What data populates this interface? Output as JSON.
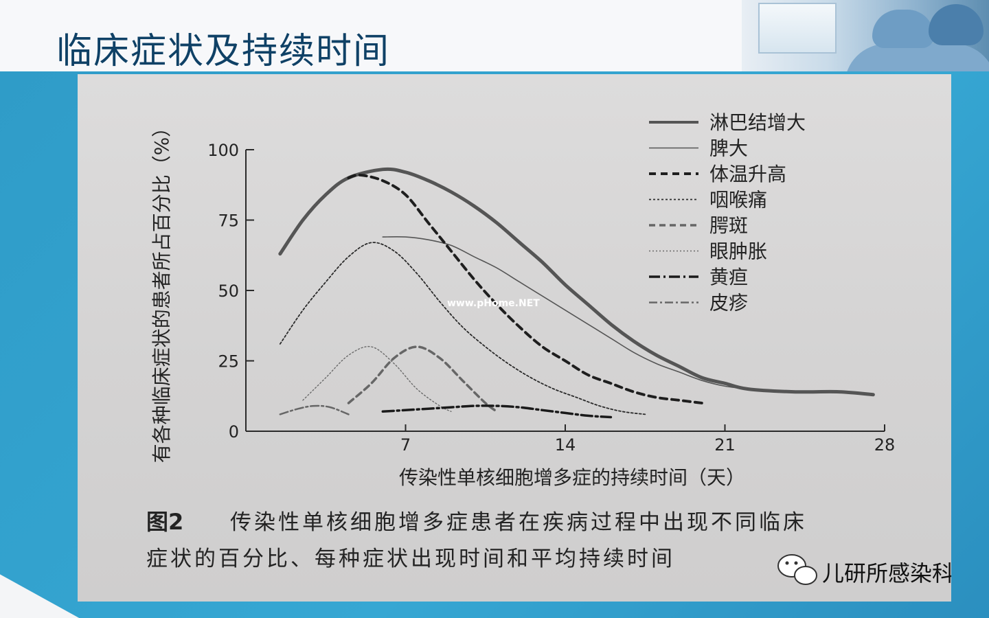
{
  "slide": {
    "title": "临床症状及持续时间"
  },
  "watermark": "www.pHome.NET",
  "caption": {
    "figure_label": "图2",
    "line1": "传染性单核细胞增多症患者在疾病过程中出现不同临床",
    "line2": "症状的百分比、每种症状出现时间和平均持续时间"
  },
  "footer": {
    "account_name": "儿研所感染科"
  },
  "chart_data": {
    "type": "line",
    "title": "",
    "xlabel": "传染性单核细胞增多症的持续时间（天）",
    "ylabel": "有各种临床症状的患者所占百分比（%）",
    "xlim": [
      0,
      28
    ],
    "ylim": [
      0,
      100
    ],
    "x_ticks": [
      {
        "value": 7,
        "label": "7"
      },
      {
        "value": 14,
        "label": "14"
      },
      {
        "value": 21,
        "label": "21"
      },
      {
        "value": 28,
        "label": "28"
      }
    ],
    "y_ticks": [
      {
        "value": 0,
        "label": "0"
      },
      {
        "value": 25,
        "label": "25"
      },
      {
        "value": 50,
        "label": "50"
      },
      {
        "value": 75,
        "label": "75"
      },
      {
        "value": 100,
        "label": "100"
      }
    ],
    "grid": false,
    "legend_position": "top-right",
    "series": [
      {
        "name": "淋巴结增大",
        "style": "solid-thick",
        "points": [
          [
            1.5,
            63
          ],
          [
            2.5,
            75
          ],
          [
            3.5,
            84
          ],
          [
            4.5,
            90
          ],
          [
            6,
            93
          ],
          [
            7,
            92
          ],
          [
            8,
            89
          ],
          [
            9,
            85
          ],
          [
            10,
            80
          ],
          [
            11,
            74
          ],
          [
            12,
            67
          ],
          [
            13,
            60
          ],
          [
            14,
            52
          ],
          [
            15,
            45
          ],
          [
            16,
            38
          ],
          [
            17,
            32
          ],
          [
            18,
            27
          ],
          [
            19,
            23
          ],
          [
            20,
            19
          ],
          [
            21,
            17
          ],
          [
            22,
            15
          ],
          [
            24,
            14
          ],
          [
            26,
            14
          ],
          [
            27.5,
            13
          ]
        ]
      },
      {
        "name": "脾大",
        "style": "solid-thin",
        "points": [
          [
            6,
            69
          ],
          [
            7,
            69
          ],
          [
            8,
            68
          ],
          [
            9,
            66
          ],
          [
            10,
            62
          ],
          [
            11,
            58
          ],
          [
            12,
            53
          ],
          [
            13,
            48
          ],
          [
            14,
            43
          ],
          [
            15,
            38
          ],
          [
            16,
            33
          ],
          [
            17,
            28
          ],
          [
            18,
            24
          ],
          [
            19,
            21
          ],
          [
            20,
            18
          ],
          [
            21,
            16
          ],
          [
            22,
            15
          ]
        ]
      },
      {
        "name": "体温升高",
        "style": "dash-thick",
        "points": [
          [
            4.5,
            90
          ],
          [
            5,
            91
          ],
          [
            6,
            89
          ],
          [
            7,
            84
          ],
          [
            8,
            74
          ],
          [
            9,
            64
          ],
          [
            10,
            54
          ],
          [
            11,
            45
          ],
          [
            12,
            37
          ],
          [
            13,
            30
          ],
          [
            14,
            25
          ],
          [
            15,
            20
          ],
          [
            16,
            17
          ],
          [
            17,
            14
          ],
          [
            18,
            12
          ],
          [
            19,
            11
          ],
          [
            20,
            10
          ]
        ]
      },
      {
        "name": "咽喉痛",
        "style": "dot",
        "points": [
          [
            1.5,
            31
          ],
          [
            2.5,
            43
          ],
          [
            3.5,
            53
          ],
          [
            4.5,
            62
          ],
          [
            5.5,
            67
          ],
          [
            6.5,
            64
          ],
          [
            7.5,
            56
          ],
          [
            8.5,
            46
          ],
          [
            9.5,
            37
          ],
          [
            10.5,
            30
          ],
          [
            11.5,
            24
          ],
          [
            12.5,
            19
          ],
          [
            13.5,
            15
          ],
          [
            14.5,
            12
          ],
          [
            15.5,
            9
          ],
          [
            16.5,
            7
          ],
          [
            17.5,
            6
          ]
        ]
      },
      {
        "name": "腭斑",
        "style": "dash-grey",
        "points": [
          [
            4.5,
            10
          ],
          [
            5.5,
            17
          ],
          [
            6.5,
            26
          ],
          [
            7.5,
            30
          ],
          [
            8.5,
            26
          ],
          [
            9.5,
            18
          ],
          [
            10.5,
            10
          ],
          [
            11,
            7
          ]
        ]
      },
      {
        "name": "眼肿胀",
        "style": "dot-fine",
        "points": [
          [
            2.5,
            11
          ],
          [
            3.5,
            19
          ],
          [
            4.5,
            27
          ],
          [
            5.5,
            30
          ],
          [
            6.5,
            24
          ],
          [
            7.5,
            15
          ],
          [
            8.5,
            9
          ],
          [
            9,
            7
          ]
        ]
      },
      {
        "name": "黄疸",
        "style": "dashdot-thick",
        "points": [
          [
            6,
            7
          ],
          [
            7,
            7.5
          ],
          [
            8,
            8
          ],
          [
            9,
            8.5
          ],
          [
            10,
            9
          ],
          [
            11,
            9
          ],
          [
            12,
            8.5
          ],
          [
            13,
            7.5
          ],
          [
            14,
            6.5
          ],
          [
            15,
            5.5
          ],
          [
            16,
            5
          ]
        ]
      },
      {
        "name": "皮疹",
        "style": "dashdot-grey",
        "points": [
          [
            1.5,
            6
          ],
          [
            2.3,
            8
          ],
          [
            3,
            9
          ],
          [
            3.7,
            8.5
          ],
          [
            4.5,
            6
          ]
        ]
      }
    ]
  },
  "colors": {
    "title": "#0f4166",
    "frame": "#36a7d3",
    "photo_paper": "#d6d5d5",
    "ink": "#232323"
  }
}
